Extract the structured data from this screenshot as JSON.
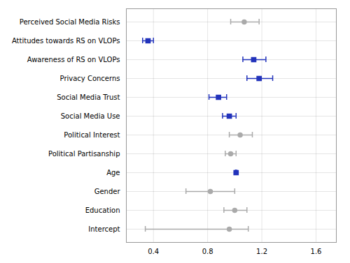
{
  "chart_data": {
    "type": "forest",
    "categories": [
      "Perceived Social Media Risks",
      "Attitudes towards RS on VLOPs",
      "Awareness of RS on VLOPs",
      "Privacy Concerns",
      "Social Media Trust",
      "Social Media Use",
      "Political Interest",
      "Political Partisanship",
      "Age",
      "Gender",
      "Education",
      "Intercept"
    ],
    "values": [
      1.07,
      0.36,
      1.14,
      1.18,
      0.88,
      0.96,
      1.04,
      0.97,
      1.01,
      0.82,
      1.0,
      0.96
    ],
    "ci_low": [
      0.97,
      0.32,
      1.06,
      1.09,
      0.81,
      0.91,
      0.96,
      0.93,
      1.005,
      0.64,
      0.92,
      0.34
    ],
    "ci_high": [
      1.18,
      0.4,
      1.23,
      1.28,
      0.94,
      1.01,
      1.13,
      1.01,
      1.015,
      1.0,
      1.09,
      1.1
    ],
    "significant": [
      false,
      true,
      true,
      true,
      true,
      true,
      false,
      false,
      true,
      false,
      false,
      false
    ],
    "colors": [
      "#aaaaaa",
      "#2233bb",
      "#2233bb",
      "#2233bb",
      "#2233bb",
      "#2233bb",
      "#aaaaaa",
      "#aaaaaa",
      "#2233bb",
      "#aaaaaa",
      "#aaaaaa",
      "#aaaaaa"
    ],
    "xlim": [
      0.2,
      1.75
    ],
    "xticks": [
      0.4,
      0.8,
      1.2,
      1.6
    ],
    "grid": true
  }
}
